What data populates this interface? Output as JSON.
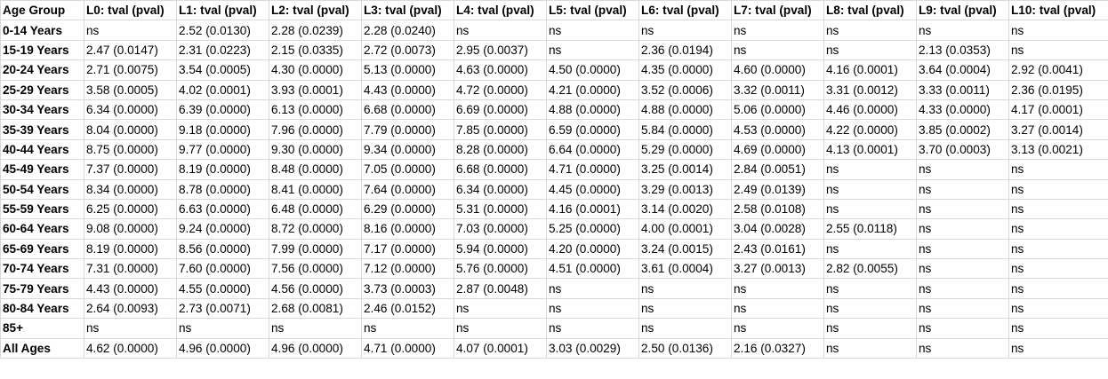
{
  "table": {
    "header": [
      "Age Group",
      "L0: tval (pval)",
      "L1: tval (pval)",
      "L2: tval (pval)",
      "L3: tval (pval)",
      "L4: tval (pval)",
      "L5: tval (pval)",
      "L6: tval (pval)",
      "L7: tval (pval)",
      "L8: tval (pval)",
      "L9: tval (pval)",
      "L10: tval (pval)"
    ],
    "rows": [
      [
        "0-14 Years",
        "ns",
        "2.52 (0.0130)",
        "2.28 (0.0239)",
        "2.28 (0.0240)",
        "ns",
        "ns",
        "ns",
        "ns",
        "ns",
        "ns",
        "ns"
      ],
      [
        "15-19 Years",
        "2.47 (0.0147)",
        "2.31 (0.0223)",
        "2.15 (0.0335)",
        "2.72 (0.0073)",
        "2.95 (0.0037)",
        "ns",
        "2.36 (0.0194)",
        "ns",
        "ns",
        "2.13 (0.0353)",
        "ns"
      ],
      [
        "20-24 Years",
        "2.71 (0.0075)",
        "3.54 (0.0005)",
        "4.30 (0.0000)",
        "5.13 (0.0000)",
        "4.63 (0.0000)",
        "4.50 (0.0000)",
        "4.35 (0.0000)",
        "4.60 (0.0000)",
        "4.16 (0.0001)",
        "3.64 (0.0004)",
        "2.92 (0.0041)"
      ],
      [
        "25-29 Years",
        "3.58 (0.0005)",
        "4.02 (0.0001)",
        "3.93 (0.0001)",
        "4.43 (0.0000)",
        "4.72 (0.0000)",
        "4.21 (0.0000)",
        "3.52 (0.0006)",
        "3.32 (0.0011)",
        "3.31 (0.0012)",
        "3.33 (0.0011)",
        "2.36 (0.0195)"
      ],
      [
        "30-34 Years",
        "6.34 (0.0000)",
        "6.39 (0.0000)",
        "6.13 (0.0000)",
        "6.68 (0.0000)",
        "6.69 (0.0000)",
        "4.88 (0.0000)",
        "4.88 (0.0000)",
        "5.06 (0.0000)",
        "4.46 (0.0000)",
        "4.33 (0.0000)",
        "4.17 (0.0001)"
      ],
      [
        "35-39 Years",
        "8.04 (0.0000)",
        "9.18 (0.0000)",
        "7.96 (0.0000)",
        "7.79 (0.0000)",
        "7.85 (0.0000)",
        "6.59 (0.0000)",
        "5.84 (0.0000)",
        "4.53 (0.0000)",
        "4.22 (0.0000)",
        "3.85 (0.0002)",
        "3.27 (0.0014)"
      ],
      [
        "40-44 Years",
        "8.75 (0.0000)",
        "9.77 (0.0000)",
        "9.30 (0.0000)",
        "9.34 (0.0000)",
        "8.28 (0.0000)",
        "6.64 (0.0000)",
        "5.29 (0.0000)",
        "4.69 (0.0000)",
        "4.13 (0.0001)",
        "3.70 (0.0003)",
        "3.13 (0.0021)"
      ],
      [
        "45-49 Years",
        "7.37 (0.0000)",
        "8.19 (0.0000)",
        "8.48 (0.0000)",
        "7.05 (0.0000)",
        "6.68 (0.0000)",
        "4.71 (0.0000)",
        "3.25 (0.0014)",
        "2.84 (0.0051)",
        "ns",
        "ns",
        "ns"
      ],
      [
        "50-54 Years",
        "8.34 (0.0000)",
        "8.78 (0.0000)",
        "8.41 (0.0000)",
        "7.64 (0.0000)",
        "6.34 (0.0000)",
        "4.45 (0.0000)",
        "3.29 (0.0013)",
        "2.49 (0.0139)",
        "ns",
        "ns",
        "ns"
      ],
      [
        "55-59 Years",
        "6.25 (0.0000)",
        "6.63 (0.0000)",
        "6.48 (0.0000)",
        "6.29 (0.0000)",
        "5.31 (0.0000)",
        "4.16 (0.0001)",
        "3.14 (0.0020)",
        "2.58 (0.0108)",
        "ns",
        "ns",
        "ns"
      ],
      [
        "60-64 Years",
        "9.08 (0.0000)",
        "9.24 (0.0000)",
        "8.72 (0.0000)",
        "8.16 (0.0000)",
        "7.03 (0.0000)",
        "5.25 (0.0000)",
        "4.00 (0.0001)",
        "3.04 (0.0028)",
        "2.55 (0.0118)",
        "ns",
        "ns"
      ],
      [
        "65-69 Years",
        "8.19 (0.0000)",
        "8.56 (0.0000)",
        "7.99 (0.0000)",
        "7.17 (0.0000)",
        "5.94 (0.0000)",
        "4.20 (0.0000)",
        "3.24 (0.0015)",
        "2.43 (0.0161)",
        "ns",
        "ns",
        "ns"
      ],
      [
        "70-74 Years",
        "7.31 (0.0000)",
        "7.60 (0.0000)",
        "7.56 (0.0000)",
        "7.12 (0.0000)",
        "5.76 (0.0000)",
        "4.51 (0.0000)",
        "3.61 (0.0004)",
        "3.27 (0.0013)",
        "2.82 (0.0055)",
        "ns",
        "ns"
      ],
      [
        "75-79 Years",
        "4.43 (0.0000)",
        "4.55 (0.0000)",
        "4.56 (0.0000)",
        "3.73 (0.0003)",
        "2.87 (0.0048)",
        "ns",
        "ns",
        "ns",
        "ns",
        "ns",
        "ns"
      ],
      [
        "80-84 Years",
        "2.64 (0.0093)",
        "2.73 (0.0071)",
        "2.68 (0.0081)",
        "2.46 (0.0152)",
        "ns",
        "ns",
        "ns",
        "ns",
        "ns",
        "ns",
        "ns"
      ],
      [
        "85+",
        "ns",
        "ns",
        "ns",
        "ns",
        "ns",
        "ns",
        "ns",
        "ns",
        "ns",
        "ns",
        "ns"
      ],
      [
        "All Ages",
        "4.62 (0.0000)",
        "4.96 (0.0000)",
        "4.96 (0.0000)",
        "4.71 (0.0000)",
        "4.07 (0.0001)",
        "3.03 (0.0029)",
        "2.50 (0.0136)",
        "2.16 (0.0327)",
        "ns",
        "ns",
        "ns"
      ]
    ]
  }
}
